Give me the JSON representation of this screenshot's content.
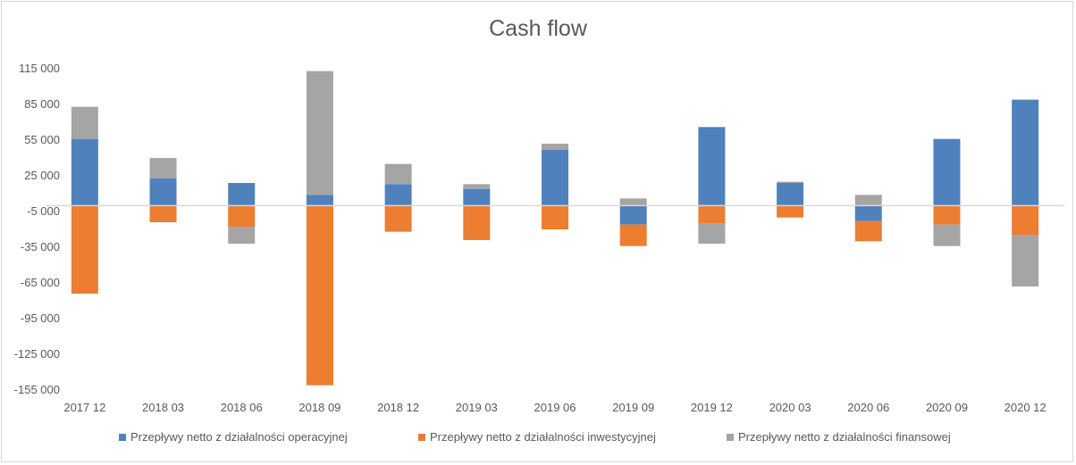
{
  "chart_data": {
    "type": "bar",
    "stacked": true,
    "title": "Cash flow",
    "xlabel": "",
    "ylabel": "",
    "categories": [
      "2017 12",
      "2018 03",
      "2018 06",
      "2018 09",
      "2018 12",
      "2019 03",
      "2019 06",
      "2019 09",
      "2019 12",
      "2020 03",
      "2020 06",
      "2020 09",
      "2020 12"
    ],
    "yticks": [
      115000,
      85000,
      55000,
      25000,
      -5000,
      -35000,
      -65000,
      -95000,
      -125000,
      -155000
    ],
    "ytick_labels": [
      "115 000",
      "85 000",
      "55 000",
      "25 000",
      "-5 000",
      "-35 000",
      "-65 000",
      "-95 000",
      "-125 000",
      "-155 000"
    ],
    "ylim": [
      -155000,
      115000
    ],
    "grid": false,
    "legend_position": "bottom",
    "series": [
      {
        "name": "Przepływy netto z działalności operacyjnej",
        "color": "#4f81bd",
        "values": [
          56000,
          23000,
          19000,
          9000,
          18000,
          14000,
          47000,
          -16000,
          66000,
          19000,
          -13000,
          56000,
          89000
        ]
      },
      {
        "name": "Przepływy netto z działalności inwestycyjnej",
        "color": "#ed7d31",
        "values": [
          -74000,
          -14000,
          -18000,
          -151000,
          -22000,
          -29000,
          -20000,
          -18000,
          -15000,
          -10000,
          -17000,
          -16000,
          -25000
        ]
      },
      {
        "name": "Przepływy netto z działalności finansowej",
        "color": "#a5a5a5",
        "values": [
          27000,
          17000,
          -14000,
          104000,
          17000,
          4000,
          5000,
          6000,
          -17000,
          1000,
          9000,
          -18000,
          -43000
        ]
      }
    ]
  }
}
